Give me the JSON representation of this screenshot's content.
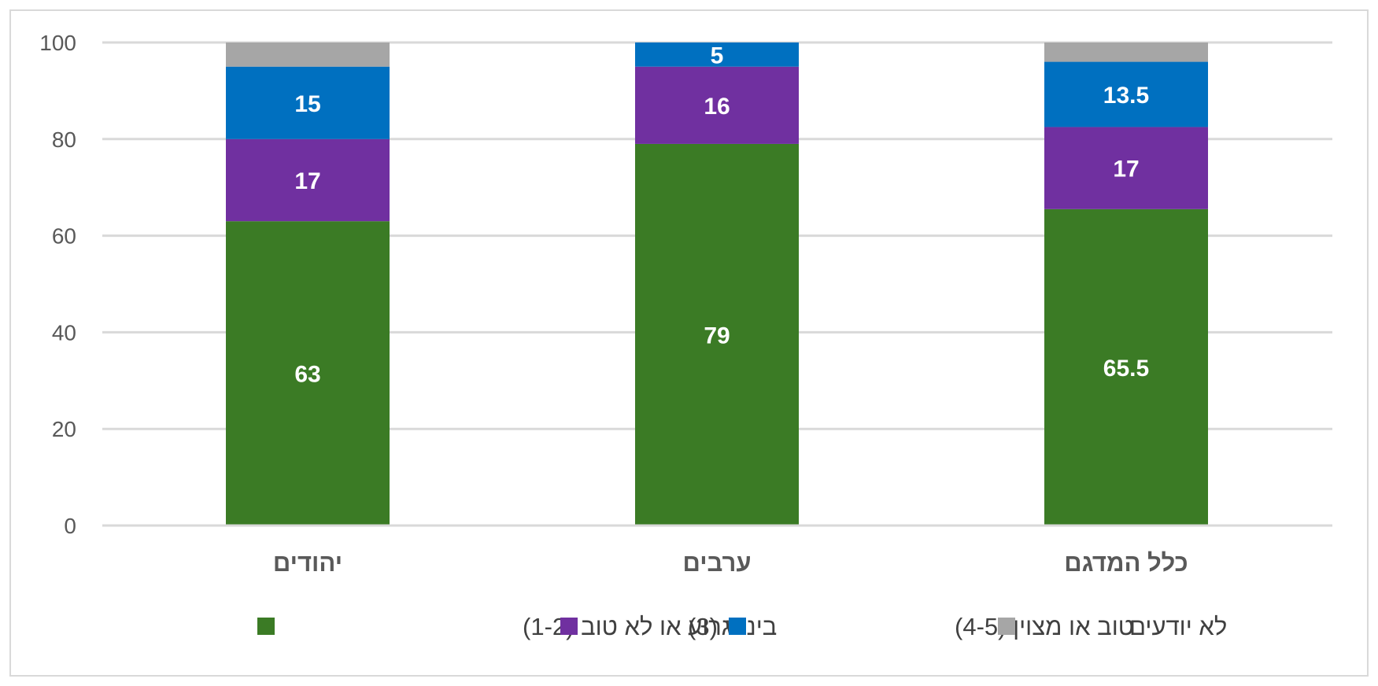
{
  "chart_data": {
    "type": "bar",
    "stacked": true,
    "categories": [
      "יהודים",
      "ערבים",
      "כלל המדגם"
    ],
    "series": [
      {
        "name": "גרוע או לא טוב (1-2)",
        "color": "#3b7b25",
        "values": [
          63,
          79,
          65.5
        ]
      },
      {
        "name": "בינוני (3)",
        "color": "#7030a0",
        "values": [
          17,
          16,
          17
        ]
      },
      {
        "name": "טוב או מצוין (4-5)",
        "color": "#0070c0",
        "values": [
          15,
          5,
          13.5
        ]
      },
      {
        "name": "לא יודעים",
        "color": "#a6a6a6",
        "values": [
          5,
          0,
          4
        ]
      }
    ],
    "data_labels": [
      [
        "63",
        "79",
        "65.5"
      ],
      [
        "17",
        "16",
        "17"
      ],
      [
        "15",
        "5",
        "13.5"
      ],
      [
        "",
        "",
        ""
      ]
    ],
    "ylim": [
      0,
      100
    ],
    "yticks": [
      0,
      20,
      40,
      60,
      80,
      100
    ],
    "grid": true,
    "legend_position": "bottom",
    "title": "",
    "xlabel": "",
    "ylabel": ""
  }
}
